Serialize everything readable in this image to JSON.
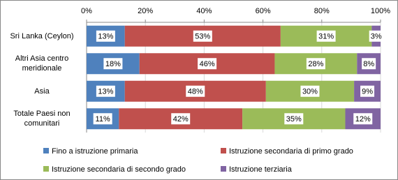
{
  "chart_data": {
    "type": "bar",
    "orientation": "horizontal",
    "stacked": true,
    "categories": [
      "Sri Lanka (Ceylon)",
      "Altri Asia centro meridionale",
      "Asia",
      "Totale Paesi non comunitari"
    ],
    "series": [
      {
        "name": "Fino a istruzione primaria",
        "color": "#4f81bd",
        "values": [
          13,
          18,
          13,
          11
        ],
        "value_labels": [
          "13%",
          "18%",
          "13%",
          "11%"
        ]
      },
      {
        "name": "Istruzione secondaria di primo grado",
        "color": "#c0504d",
        "values": [
          53,
          46,
          48,
          42
        ],
        "value_labels": [
          "53%",
          "46%",
          "48%",
          "42%"
        ]
      },
      {
        "name": "Istruzione secondaria di secondo grado",
        "color": "#9bbb59",
        "values": [
          31,
          28,
          30,
          35
        ],
        "value_labels": [
          "31%",
          "28%",
          "30%",
          "35%"
        ]
      },
      {
        "name": "Istruzione terziaria",
        "color": "#8064a2",
        "values": [
          3,
          8,
          9,
          12
        ],
        "value_labels": [
          "3%",
          "8%",
          "9%",
          "12%"
        ]
      }
    ],
    "xlim": [
      0,
      100
    ],
    "xticks": [
      {
        "value": 0,
        "label": "0%"
      },
      {
        "value": 20,
        "label": "20%"
      },
      {
        "value": 40,
        "label": "40%"
      },
      {
        "value": 60,
        "label": "60%"
      },
      {
        "value": 80,
        "label": "80%"
      },
      {
        "value": 100,
        "label": "100%"
      }
    ],
    "grid": true
  }
}
